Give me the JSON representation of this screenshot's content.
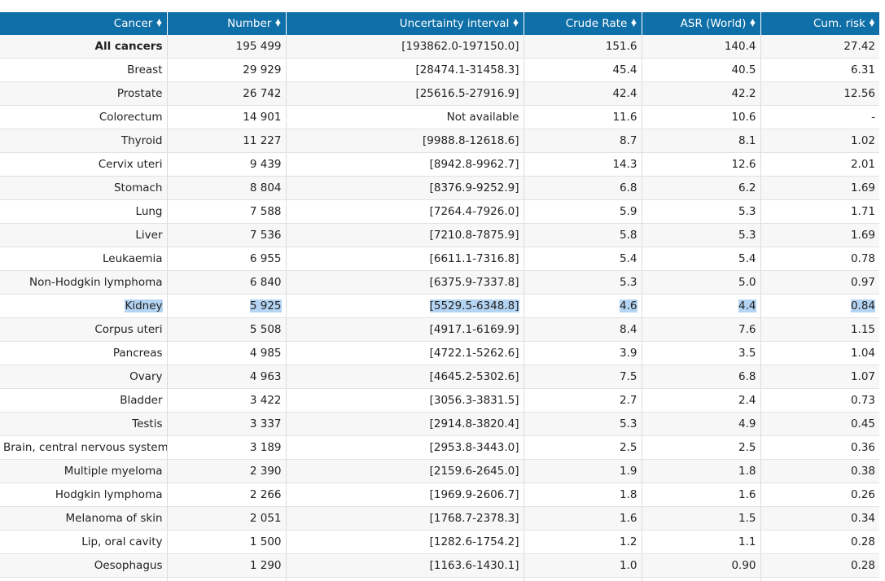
{
  "colors": {
    "header_bg": "#0f6fa8",
    "selection": "#b4d4f3"
  },
  "columns": [
    {
      "label": "Cancer"
    },
    {
      "label": "Number"
    },
    {
      "label": "Uncertainty interval"
    },
    {
      "label": "Crude Rate"
    },
    {
      "label": "ASR (World)"
    },
    {
      "label": "Cum. risk"
    }
  ],
  "sort_icon": "sort-updown-icon",
  "rows": [
    {
      "cancer": "All cancers",
      "number": "195 499",
      "interval": "[193862.0-197150.0]",
      "crude": "151.6",
      "asr": "140.4",
      "cum": "27.42",
      "bold": true
    },
    {
      "cancer": "Breast",
      "number": "29 929",
      "interval": "[28474.1-31458.3]",
      "crude": "45.4",
      "asr": "40.5",
      "cum": "6.31"
    },
    {
      "cancer": "Prostate",
      "number": "26 742",
      "interval": "[25616.5-27916.9]",
      "crude": "42.4",
      "asr": "42.2",
      "cum": "12.56"
    },
    {
      "cancer": "Colorectum",
      "number": "14 901",
      "interval": "Not available",
      "crude": "11.6",
      "asr": "10.6",
      "cum": "-"
    },
    {
      "cancer": "Thyroid",
      "number": "11 227",
      "interval": "[9988.8-12618.6]",
      "crude": "8.7",
      "asr": "8.1",
      "cum": "1.02"
    },
    {
      "cancer": "Cervix uteri",
      "number": "9 439",
      "interval": "[8942.8-9962.7]",
      "crude": "14.3",
      "asr": "12.6",
      "cum": "2.01"
    },
    {
      "cancer": "Stomach",
      "number": "8 804",
      "interval": "[8376.9-9252.9]",
      "crude": "6.8",
      "asr": "6.2",
      "cum": "1.69"
    },
    {
      "cancer": "Lung",
      "number": "7 588",
      "interval": "[7264.4-7926.0]",
      "crude": "5.9",
      "asr": "5.3",
      "cum": "1.71"
    },
    {
      "cancer": "Liver",
      "number": "7 536",
      "interval": "[7210.8-7875.9]",
      "crude": "5.8",
      "asr": "5.3",
      "cum": "1.69"
    },
    {
      "cancer": "Leukaemia",
      "number": "6 955",
      "interval": "[6611.1-7316.8]",
      "crude": "5.4",
      "asr": "5.4",
      "cum": "0.78"
    },
    {
      "cancer": "Non-Hodgkin lymphoma",
      "number": "6 840",
      "interval": "[6375.9-7337.8]",
      "crude": "5.3",
      "asr": "5.0",
      "cum": "0.97"
    },
    {
      "cancer": "Kidney",
      "number": "5 925",
      "interval": "[5529.5-6348.8]",
      "crude": "4.6",
      "asr": "4.4",
      "cum": "0.84",
      "selected": true
    },
    {
      "cancer": "Corpus uteri",
      "number": "5 508",
      "interval": "[4917.1-6169.9]",
      "crude": "8.4",
      "asr": "7.6",
      "cum": "1.15"
    },
    {
      "cancer": "Pancreas",
      "number": "4 985",
      "interval": "[4722.1-5262.6]",
      "crude": "3.9",
      "asr": "3.5",
      "cum": "1.04"
    },
    {
      "cancer": "Ovary",
      "number": "4 963",
      "interval": "[4645.2-5302.6]",
      "crude": "7.5",
      "asr": "6.8",
      "cum": "1.07"
    },
    {
      "cancer": "Bladder",
      "number": "3 422",
      "interval": "[3056.3-3831.5]",
      "crude": "2.7",
      "asr": "2.4",
      "cum": "0.73"
    },
    {
      "cancer": "Testis",
      "number": "3 337",
      "interval": "[2914.8-3820.4]",
      "crude": "5.3",
      "asr": "4.9",
      "cum": "0.45"
    },
    {
      "cancer": "Brain, central nervous system",
      "number": "3 189",
      "interval": "[2953.8-3443.0]",
      "crude": "2.5",
      "asr": "2.5",
      "cum": "0.36"
    },
    {
      "cancer": "Multiple myeloma",
      "number": "2 390",
      "interval": "[2159.6-2645.0]",
      "crude": "1.9",
      "asr": "1.8",
      "cum": "0.38"
    },
    {
      "cancer": "Hodgkin lymphoma",
      "number": "2 266",
      "interval": "[1969.9-2606.7]",
      "crude": "1.8",
      "asr": "1.6",
      "cum": "0.26"
    },
    {
      "cancer": "Melanoma of skin",
      "number": "2 051",
      "interval": "[1768.7-2378.3]",
      "crude": "1.6",
      "asr": "1.5",
      "cum": "0.34"
    },
    {
      "cancer": "Lip, oral cavity",
      "number": "1 500",
      "interval": "[1282.6-1754.2]",
      "crude": "1.2",
      "asr": "1.1",
      "cum": "0.28"
    },
    {
      "cancer": "Oesophagus",
      "number": "1 290",
      "interval": "[1163.6-1430.1]",
      "crude": "1.0",
      "asr": "0.90",
      "cum": "0.28"
    },
    {
      "cancer": "",
      "number": "",
      "interval": "",
      "crude": "",
      "asr": "",
      "cum": ""
    }
  ]
}
